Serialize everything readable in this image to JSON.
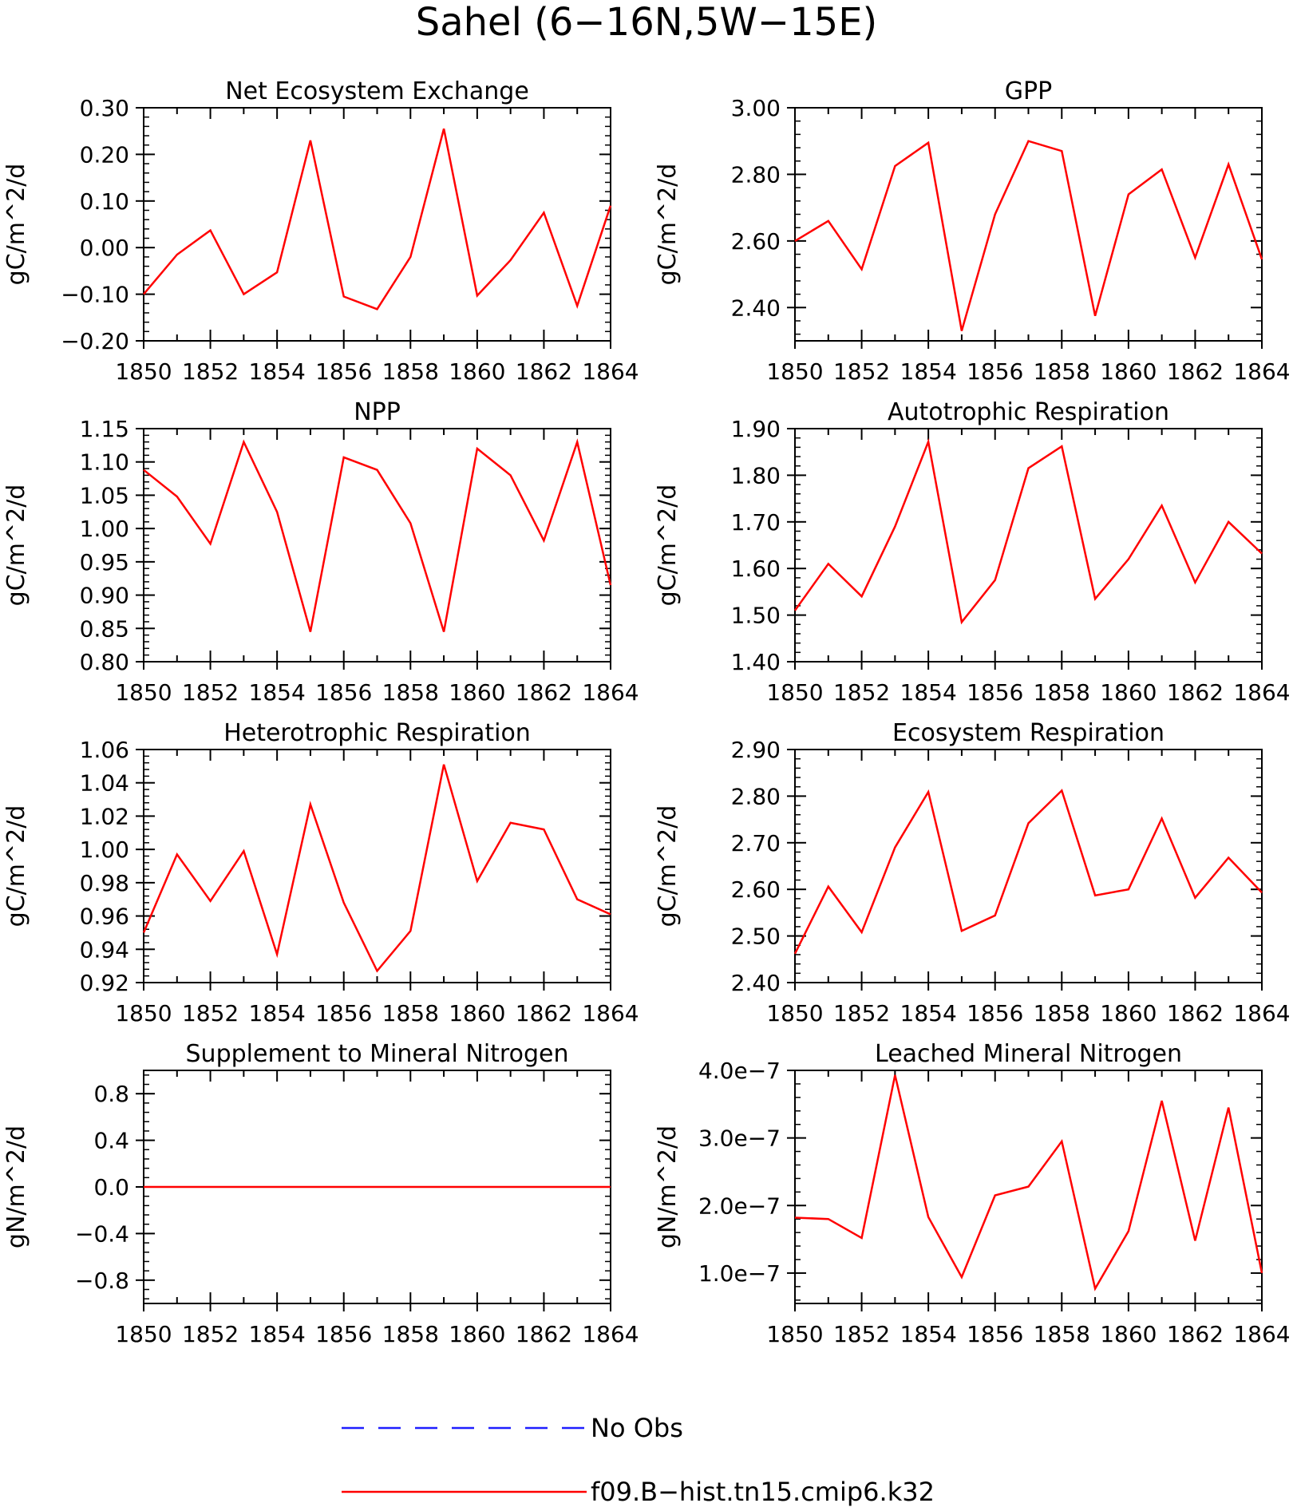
{
  "figure": {
    "title": "Sahel (6−16N,5W−15E)"
  },
  "chart_data": [
    {
      "type": "line",
      "title": "Net Ecosystem Exchange",
      "ylabel": "gC/m^2/d",
      "xlabel": "",
      "xlim": [
        1850,
        1864
      ],
      "ylim": [
        -0.2,
        0.3
      ],
      "xticks": [
        "1850",
        "1852",
        "1854",
        "1856",
        "1858",
        "1860",
        "1862",
        "1864"
      ],
      "yticks": [
        "−0.20",
        "−0.10",
        "0.00",
        "0.10",
        "0.20",
        "0.30"
      ],
      "x": [
        1850,
        1851,
        1852,
        1853,
        1854,
        1855,
        1856,
        1857,
        1858,
        1859,
        1860,
        1861,
        1862,
        1863,
        1864
      ],
      "series": [
        {
          "values": [
            -0.1,
            -0.015,
            0.037,
            -0.1,
            -0.053,
            0.23,
            -0.105,
            -0.132,
            -0.02,
            0.255,
            -0.103,
            -0.027,
            0.075,
            -0.125,
            0.09
          ]
        }
      ]
    },
    {
      "type": "line",
      "title": "GPP",
      "ylabel": "gC/m^2/d",
      "xlabel": "",
      "xlim": [
        1850,
        1864
      ],
      "ylim": [
        2.3,
        3.0
      ],
      "xticks": [
        "1850",
        "1852",
        "1854",
        "1856",
        "1858",
        "1860",
        "1862",
        "1864"
      ],
      "yticks": [
        "2.40",
        "2.60",
        "2.80",
        "3.00"
      ],
      "x": [
        1850,
        1851,
        1852,
        1853,
        1854,
        1855,
        1856,
        1857,
        1858,
        1859,
        1860,
        1861,
        1862,
        1863,
        1864
      ],
      "series": [
        {
          "values": [
            2.6,
            2.66,
            2.515,
            2.825,
            2.895,
            2.33,
            2.68,
            2.9,
            2.87,
            2.375,
            2.74,
            2.815,
            2.55,
            2.83,
            2.545
          ]
        }
      ]
    },
    {
      "type": "line",
      "title": "NPP",
      "ylabel": "gC/m^2/d",
      "xlabel": "",
      "xlim": [
        1850,
        1864
      ],
      "ylim": [
        0.8,
        1.15
      ],
      "xticks": [
        "1850",
        "1852",
        "1854",
        "1856",
        "1858",
        "1860",
        "1862",
        "1864"
      ],
      "yticks": [
        "0.80",
        "0.85",
        "0.90",
        "0.95",
        "1.00",
        "1.05",
        "1.10",
        "1.15"
      ],
      "x": [
        1850,
        1851,
        1852,
        1853,
        1854,
        1855,
        1856,
        1857,
        1858,
        1859,
        1860,
        1861,
        1862,
        1863,
        1864
      ],
      "series": [
        {
          "values": [
            1.088,
            1.048,
            0.977,
            1.13,
            1.025,
            0.845,
            1.107,
            1.088,
            1.008,
            0.845,
            1.12,
            1.08,
            0.982,
            1.13,
            0.915
          ]
        }
      ]
    },
    {
      "type": "line",
      "title": "Autotrophic Respiration",
      "ylabel": "gC/m^2/d",
      "xlabel": "",
      "xlim": [
        1850,
        1864
      ],
      "ylim": [
        1.4,
        1.9
      ],
      "xticks": [
        "1850",
        "1852",
        "1854",
        "1856",
        "1858",
        "1860",
        "1862",
        "1864"
      ],
      "yticks": [
        "1.40",
        "1.50",
        "1.60",
        "1.70",
        "1.80",
        "1.90"
      ],
      "x": [
        1850,
        1851,
        1852,
        1853,
        1854,
        1855,
        1856,
        1857,
        1858,
        1859,
        1860,
        1861,
        1862,
        1863,
        1864
      ],
      "series": [
        {
          "values": [
            1.51,
            1.61,
            1.54,
            1.69,
            1.872,
            1.485,
            1.575,
            1.815,
            1.862,
            1.535,
            1.62,
            1.735,
            1.57,
            1.7,
            1.632
          ]
        }
      ]
    },
    {
      "type": "line",
      "title": "Heterotrophic Respiration",
      "ylabel": "gC/m^2/d",
      "xlabel": "",
      "xlim": [
        1850,
        1864
      ],
      "ylim": [
        0.92,
        1.06
      ],
      "xticks": [
        "1850",
        "1852",
        "1854",
        "1856",
        "1858",
        "1860",
        "1862",
        "1864"
      ],
      "yticks": [
        "0.92",
        "0.94",
        "0.96",
        "0.98",
        "1.00",
        "1.02",
        "1.04",
        "1.06"
      ],
      "x": [
        1850,
        1851,
        1852,
        1853,
        1854,
        1855,
        1856,
        1857,
        1858,
        1859,
        1860,
        1861,
        1862,
        1863,
        1864
      ],
      "series": [
        {
          "values": [
            0.95,
            0.997,
            0.969,
            0.999,
            0.937,
            1.027,
            0.968,
            0.927,
            0.951,
            1.051,
            0.981,
            1.016,
            1.012,
            0.97,
            0.961
          ]
        }
      ]
    },
    {
      "type": "line",
      "title": "Ecosystem Respiration",
      "ylabel": "gC/m^2/d",
      "xlabel": "",
      "xlim": [
        1850,
        1864
      ],
      "ylim": [
        2.4,
        2.9
      ],
      "xticks": [
        "1850",
        "1852",
        "1854",
        "1856",
        "1858",
        "1860",
        "1862",
        "1864"
      ],
      "yticks": [
        "2.40",
        "2.50",
        "2.60",
        "2.70",
        "2.80",
        "2.90"
      ],
      "x": [
        1850,
        1851,
        1852,
        1853,
        1854,
        1855,
        1856,
        1857,
        1858,
        1859,
        1860,
        1861,
        1862,
        1863,
        1864
      ],
      "series": [
        {
          "values": [
            2.462,
            2.606,
            2.508,
            2.69,
            2.809,
            2.511,
            2.544,
            2.742,
            2.812,
            2.587,
            2.6,
            2.752,
            2.582,
            2.668,
            2.593
          ]
        }
      ]
    },
    {
      "type": "line",
      "title": "Supplement to Mineral Nitrogen",
      "ylabel": "gN/m^2/d",
      "xlabel": "",
      "xlim": [
        1850,
        1864
      ],
      "ylim": [
        -1.0,
        1.0
      ],
      "xticks": [
        "1850",
        "1852",
        "1854",
        "1856",
        "1858",
        "1860",
        "1862",
        "1864"
      ],
      "yticks": [
        "−0.8",
        "−0.4",
        "0.0",
        "0.4",
        "0.8"
      ],
      "x": [
        1850,
        1851,
        1852,
        1853,
        1854,
        1855,
        1856,
        1857,
        1858,
        1859,
        1860,
        1861,
        1862,
        1863,
        1864
      ],
      "series": [
        {
          "values": [
            0,
            0,
            0,
            0,
            0,
            0,
            0,
            0,
            0,
            0,
            0,
            0,
            0,
            0,
            0
          ]
        }
      ]
    },
    {
      "type": "line",
      "title": "Leached Mineral Nitrogen",
      "ylabel": "gN/m^2/d",
      "xlabel": "",
      "xlim": [
        1850,
        1864
      ],
      "ylim": [
        5.5e-08,
        4e-07
      ],
      "xticks": [
        "1850",
        "1852",
        "1854",
        "1856",
        "1858",
        "1860",
        "1862",
        "1864"
      ],
      "yticks": [
        "1.0e−7",
        "2.0e−7",
        "3.0e−7",
        "4.0e−7"
      ],
      "x": [
        1850,
        1851,
        1852,
        1853,
        1854,
        1855,
        1856,
        1857,
        1858,
        1859,
        1860,
        1861,
        1862,
        1863,
        1864
      ],
      "series": [
        {
          "values": [
            1.82e-07,
            1.8e-07,
            1.52e-07,
            3.93e-07,
            1.83e-07,
            9.4e-08,
            2.15e-07,
            2.28e-07,
            2.95e-07,
            7.7e-08,
            1.62e-07,
            3.55e-07,
            1.48e-07,
            3.45e-07,
            1e-07
          ]
        }
      ]
    }
  ],
  "legend": {
    "placement": "bottom",
    "entries": [
      {
        "label": "No Obs",
        "color": "#1f1fff",
        "style": "dashed"
      },
      {
        "label": "f09.B−hist.tn15.cmip6.k32",
        "color": "#ff0000",
        "style": "solid"
      }
    ]
  },
  "colors": {
    "model_line": "#ff0000",
    "obs_line": "#1f1fff",
    "axes": "#000000"
  }
}
